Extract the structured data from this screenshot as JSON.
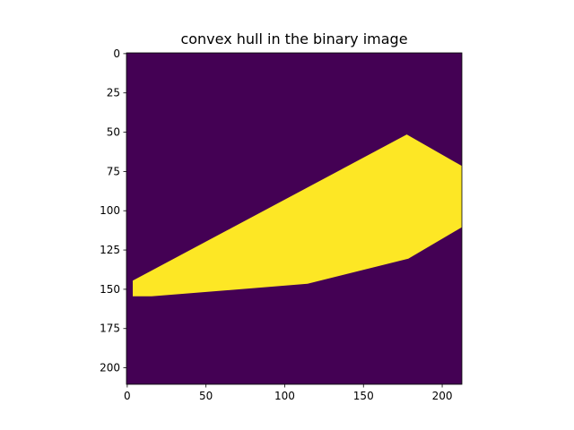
{
  "chart_data": {
    "type": "heatmap",
    "title": "convex hull in the binary image",
    "xlabel": "",
    "ylabel": "",
    "image_shape": {
      "rows": 211,
      "cols": 213
    },
    "xlim": [
      -0.5,
      212.5
    ],
    "ylim": [
      210.5,
      -0.5
    ],
    "x_ticks": [
      0,
      50,
      100,
      150,
      200
    ],
    "y_ticks": [
      0,
      25,
      50,
      75,
      100,
      125,
      150,
      175,
      200
    ],
    "grid": false,
    "colormap": "viridis",
    "colors": {
      "background": "#440154",
      "foreground": "#fde725"
    },
    "values": {
      "background": 0,
      "foreground": 1
    },
    "hull_vertices": [
      {
        "x": 3.5,
        "y": 144.5
      },
      {
        "x": 177.5,
        "y": 51.5
      },
      {
        "x": 212.5,
        "y": 71.5
      },
      {
        "x": 212.5,
        "y": 110.5
      },
      {
        "x": 178.5,
        "y": 130.5
      },
      {
        "x": 114.5,
        "y": 146.5
      },
      {
        "x": 15.5,
        "y": 154.5
      },
      {
        "x": 3.5,
        "y": 154.5
      }
    ]
  }
}
